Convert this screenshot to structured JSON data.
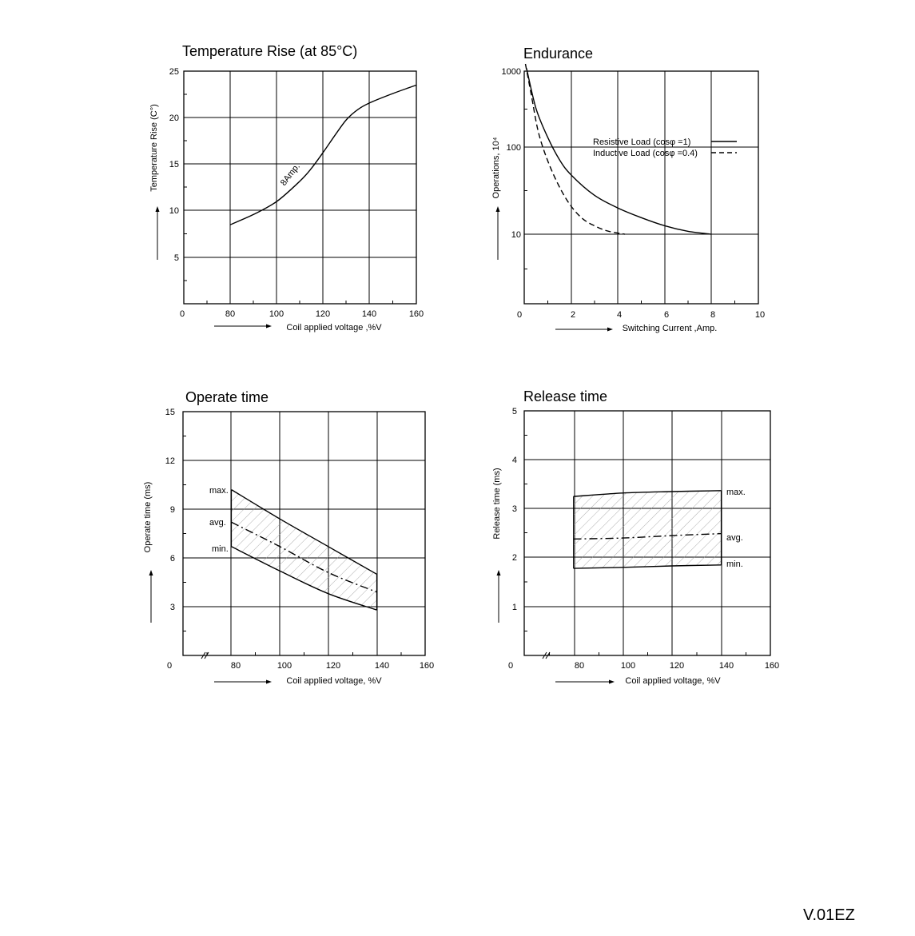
{
  "chart_data": [
    {
      "id": "temp",
      "type": "line",
      "title": "Temperature Rise (at 85°C)",
      "xlabel": "Coil applied voltage ,%V",
      "ylabel": "Temperature Rise (C°)",
      "x_ticks": [
        "0",
        "80",
        "100",
        "120",
        "140",
        "160"
      ],
      "y_ticks": [
        "25",
        "20",
        "15",
        "10",
        "5"
      ],
      "xlim": [
        60,
        160
      ],
      "ylim": [
        0,
        25
      ],
      "grid": true,
      "series": [
        {
          "name": "8Amp.",
          "x": [
            80,
            90,
            100,
            110,
            115,
            120,
            125,
            130,
            135,
            140,
            150,
            160
          ],
          "y": [
            8.5,
            9.6,
            11.0,
            13.2,
            14.6,
            16.3,
            18.1,
            19.8,
            20.9,
            21.6,
            22.6,
            23.5
          ]
        }
      ],
      "annotations": [
        "8Amp."
      ]
    },
    {
      "id": "endurance",
      "type": "line",
      "title": "Endurance",
      "xlabel": "Switching Current ,Amp.",
      "ylabel": "Operations, 10⁴",
      "x_ticks": [
        "0",
        "2",
        "4",
        "6",
        "8",
        "10"
      ],
      "y_ticks": [
        "1000",
        "100",
        "10"
      ],
      "xlim": [
        0,
        10
      ],
      "ylim": [
        1,
        1000
      ],
      "y_scale": "log",
      "grid": true,
      "legend_position": "center-right",
      "series": [
        {
          "name": "Resistive Load (cosφ =1)",
          "style": "solid",
          "x": [
            0.1,
            0.5,
            1,
            1.5,
            2,
            3,
            4,
            5,
            6,
            7,
            8
          ],
          "y": [
            800,
            280,
            130,
            72,
            48,
            28,
            20,
            15.5,
            12.5,
            10.8,
            10
          ]
        },
        {
          "name": "Inductive Load (cosφ =0.4)",
          "style": "dashed",
          "x": [
            0.05,
            0.3,
            0.6,
            1,
            1.5,
            2,
            2.5,
            3,
            3.5,
            4,
            4.3
          ],
          "y": [
            900,
            400,
            150,
            70,
            35,
            21,
            15,
            12.5,
            11,
            10.3,
            10
          ]
        }
      ]
    },
    {
      "id": "operate",
      "type": "area",
      "title": "Operate time",
      "xlabel": "Coil applied voltage, %V",
      "ylabel": "Operate time (ms)",
      "x_ticks": [
        "0",
        "80",
        "100",
        "120",
        "140",
        "160"
      ],
      "y_ticks": [
        "15",
        "12",
        "9",
        "6",
        "3"
      ],
      "xlim": [
        60,
        160
      ],
      "ylim": [
        0,
        15
      ],
      "grid": true,
      "series": [
        {
          "name": "max.",
          "style": "solid",
          "x": [
            80,
            100,
            120,
            140
          ],
          "y": [
            10.2,
            8.4,
            6.7,
            5.0
          ]
        },
        {
          "name": "avg.",
          "style": "dashdot",
          "x": [
            80,
            100,
            120,
            140
          ],
          "y": [
            8.2,
            6.7,
            5.1,
            3.9
          ]
        },
        {
          "name": "min.",
          "style": "solid",
          "x": [
            80,
            100,
            120,
            140
          ],
          "y": [
            6.7,
            5.2,
            3.8,
            2.8
          ]
        }
      ],
      "shaded_band": [
        "max.",
        "min."
      ]
    },
    {
      "id": "release",
      "type": "area",
      "title": "Release time",
      "xlabel": "Coil applied voltage, %V",
      "ylabel": "Release time (ms)",
      "x_ticks": [
        "0",
        "80",
        "100",
        "120",
        "140",
        "160"
      ],
      "y_ticks": [
        "5",
        "4",
        "3",
        "2",
        "1"
      ],
      "xlim": [
        60,
        160
      ],
      "ylim": [
        0,
        5
      ],
      "grid": true,
      "series": [
        {
          "name": "max.",
          "style": "solid",
          "x": [
            80,
            100,
            120,
            140
          ],
          "y": [
            3.25,
            3.32,
            3.35,
            3.37
          ]
        },
        {
          "name": "avg.",
          "style": "dashdot",
          "x": [
            80,
            100,
            120,
            140
          ],
          "y": [
            2.38,
            2.4,
            2.45,
            2.49
          ]
        },
        {
          "name": "min.",
          "style": "solid",
          "x": [
            80,
            100,
            120,
            140
          ],
          "y": [
            1.78,
            1.8,
            1.83,
            1.85
          ]
        }
      ],
      "shaded_band": [
        "max.",
        "min."
      ]
    }
  ],
  "footer": {
    "version": "V.01EZ"
  }
}
